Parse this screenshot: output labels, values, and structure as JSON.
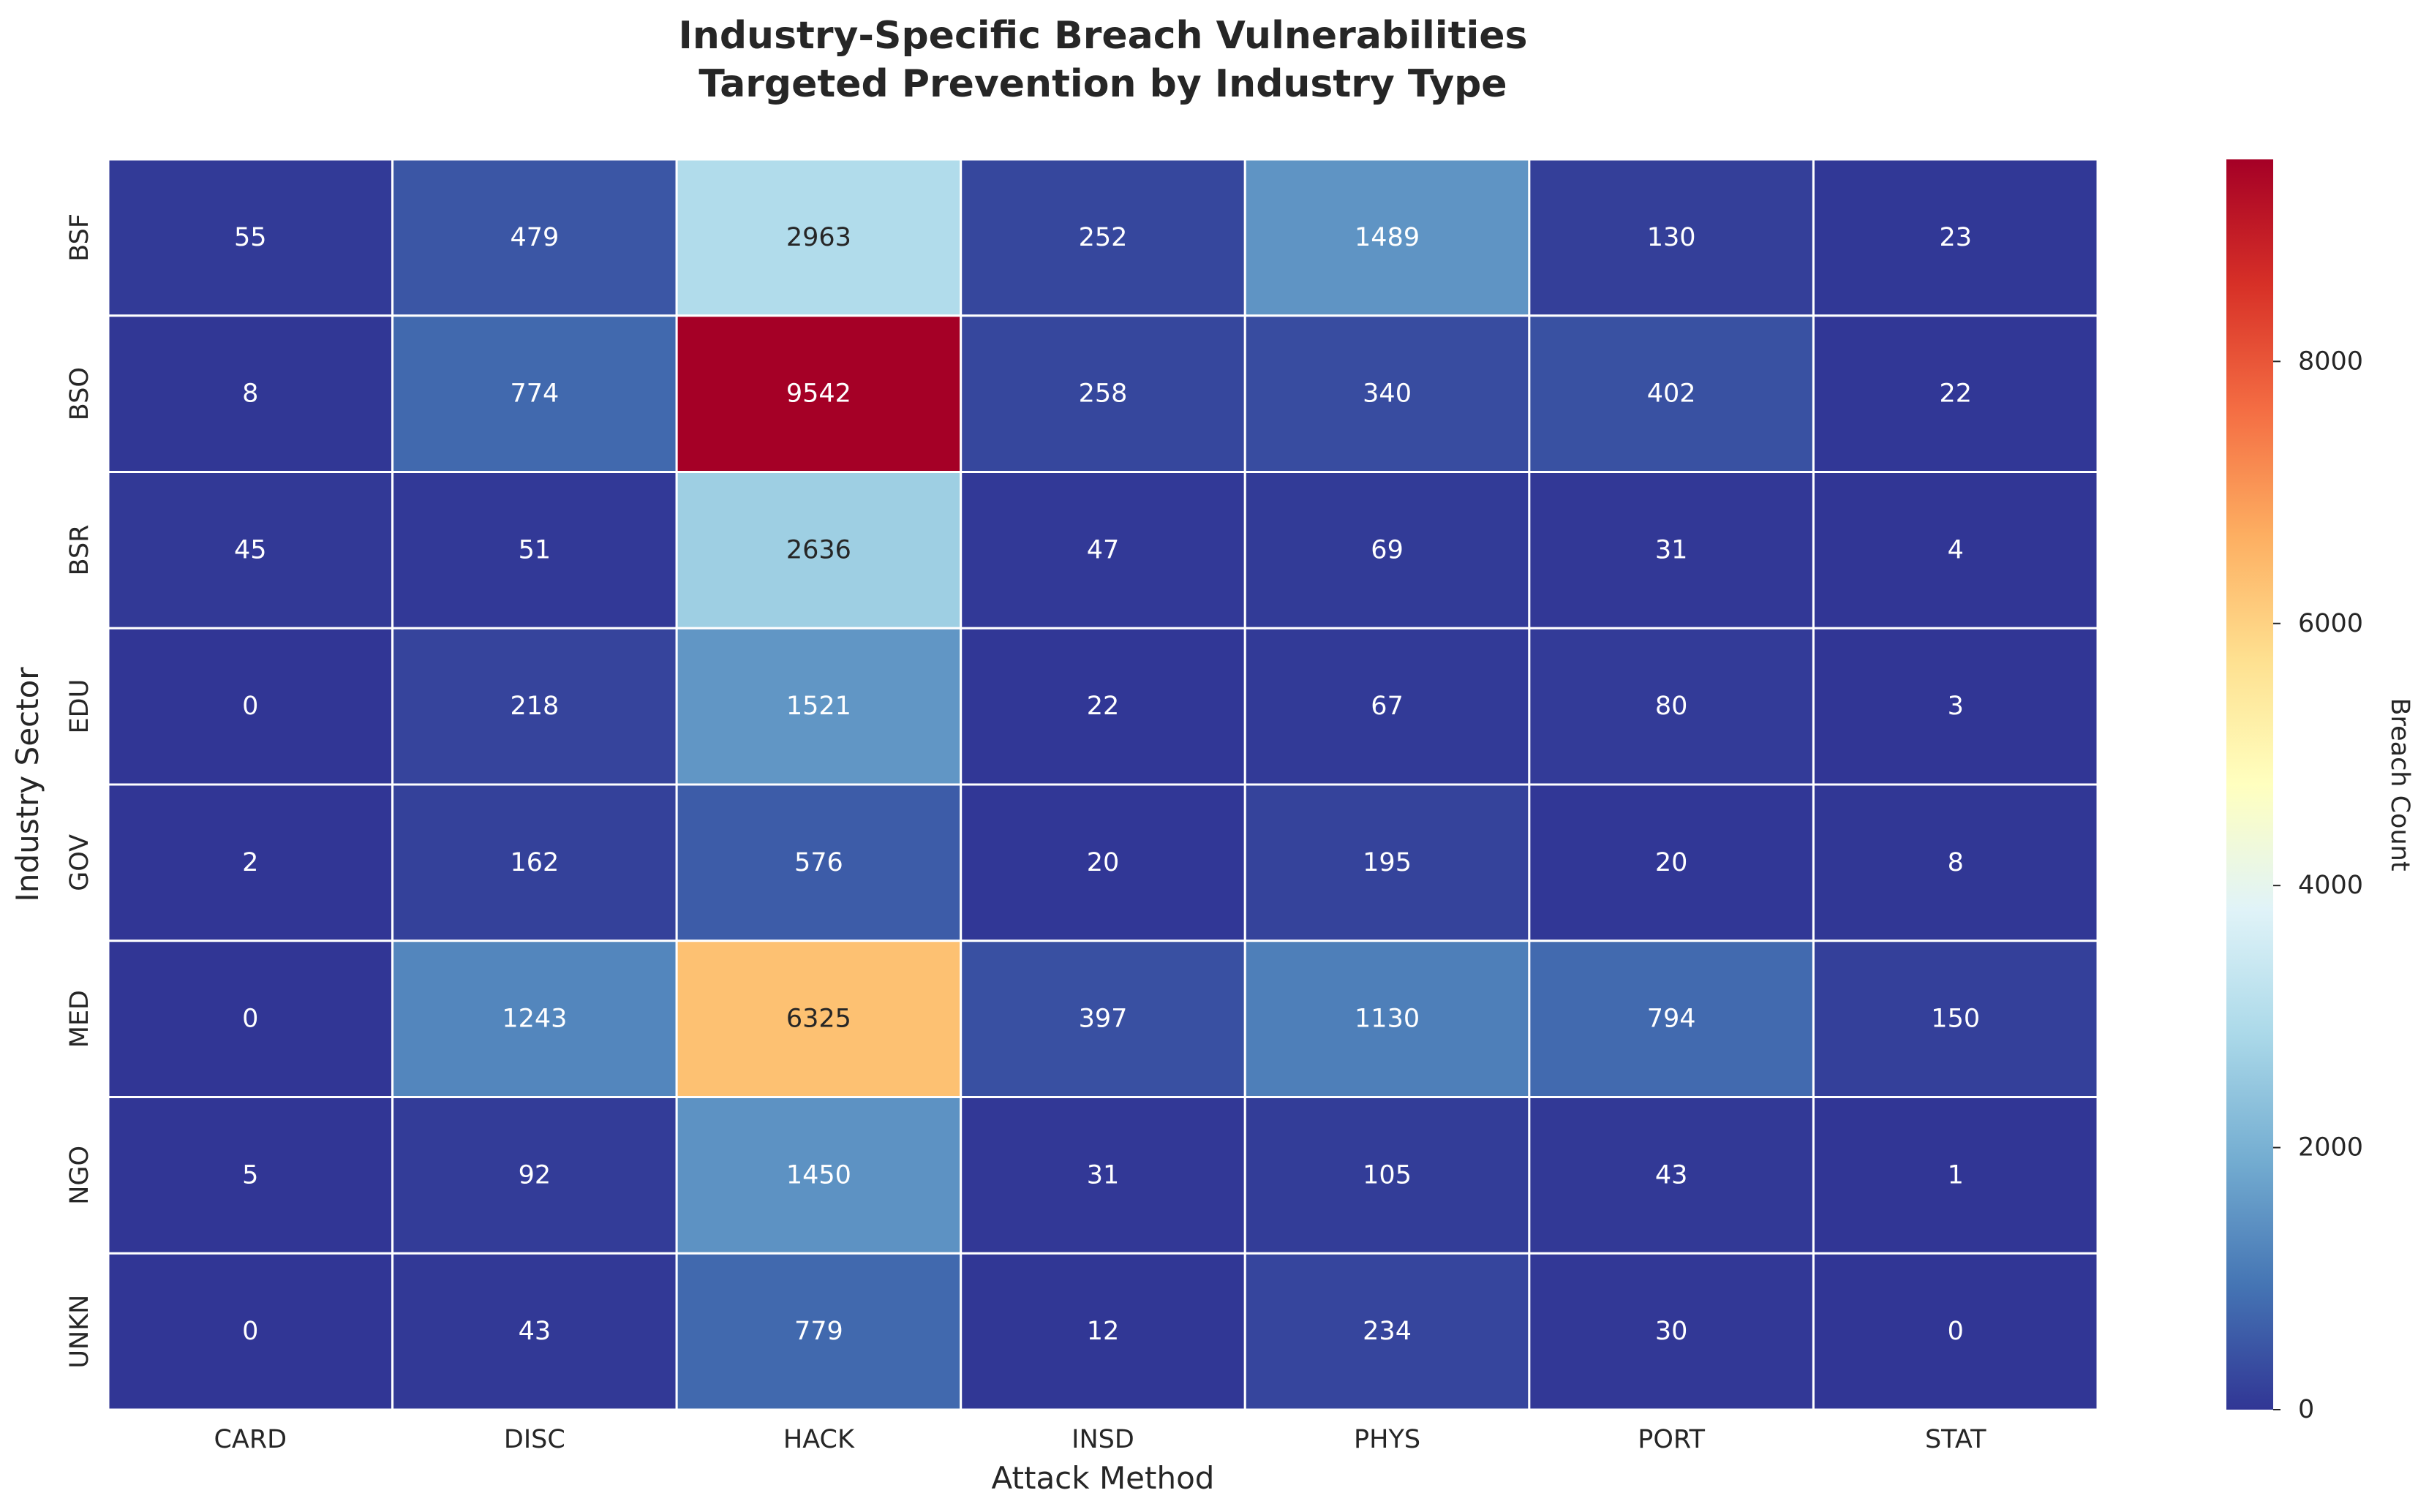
{
  "chart_data": {
    "type": "heatmap",
    "title": "Industry-Specific Breach Vulnerabilities",
    "subtitle": "Targeted Prevention by Industry Type",
    "xlabel": "Attack Method",
    "ylabel": "Industry Sector",
    "colorbar_label": "Breach Count",
    "colormap": "RdYlBu_r",
    "colormap_stops": [
      "#313695",
      "#4575b4",
      "#74add1",
      "#abd9e9",
      "#e0f3f8",
      "#ffffbf",
      "#fee090",
      "#fdae61",
      "#f46d43",
      "#d73027",
      "#a50026"
    ],
    "value_range": [
      0,
      9542
    ],
    "colorbar_ticks": [
      0,
      2000,
      4000,
      6000,
      8000
    ],
    "columns": [
      "CARD",
      "DISC",
      "HACK",
      "INSD",
      "PHYS",
      "PORT",
      "STAT"
    ],
    "rows": [
      "BSF",
      "BSO",
      "BSR",
      "EDU",
      "GOV",
      "MED",
      "NGO",
      "UNKN"
    ],
    "values": [
      [
        55,
        479,
        2963,
        252,
        1489,
        130,
        23
      ],
      [
        8,
        774,
        9542,
        258,
        340,
        402,
        22
      ],
      [
        45,
        51,
        2636,
        47,
        69,
        31,
        4
      ],
      [
        0,
        218,
        1521,
        22,
        67,
        80,
        3
      ],
      [
        2,
        162,
        576,
        20,
        195,
        20,
        8
      ],
      [
        0,
        1243,
        6325,
        397,
        1130,
        794,
        150
      ],
      [
        5,
        92,
        1450,
        31,
        105,
        43,
        1
      ],
      [
        0,
        43,
        779,
        12,
        234,
        30,
        0
      ]
    ],
    "annotations": true,
    "gridlines": "white cell borders"
  }
}
